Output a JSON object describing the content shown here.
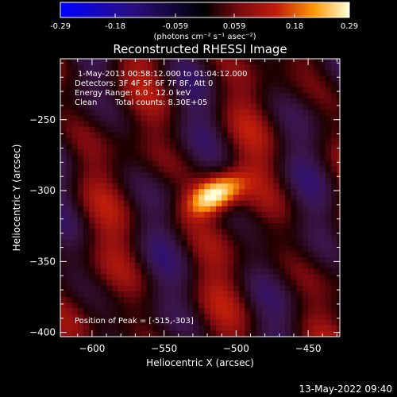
{
  "colorbar": {
    "ticks": [
      "-0.29",
      "-0.18",
      "-0.059",
      "0.059",
      "0.18",
      "0.29"
    ],
    "unit_label": "(photons cm⁻² s⁻¹ asec⁻²)"
  },
  "chart_data": {
    "type": "heatmap",
    "title": "Reconstructed RHESSI Image",
    "xlabel": "Heliocentric X (arcsec)",
    "ylabel": "Heliocentric Y (arcsec)",
    "xlim": [
      -622,
      -428
    ],
    "ylim": [
      -403,
      -207
    ],
    "xticks": [
      -600,
      -550,
      -500,
      -450
    ],
    "yticks": [
      -400,
      -350,
      -300,
      -250
    ],
    "zlim": [
      -0.29,
      0.29
    ],
    "peak": [
      -515,
      -303
    ],
    "annotations": {
      "time_range": "1-May-2013 00:58:12.000 to 01:04:12.000",
      "detectors": "Detectors: 3F 4F 5F 6F 7F 8F, Att 0",
      "energy": "Energy Range: 6.0 - 12.0 keV",
      "clean": "Clean",
      "counts": "Total counts: 8.30E+05",
      "peak_text": "Position of Peak = [-515,-303]"
    }
  },
  "timestamp": "13-May-2022 09:40"
}
